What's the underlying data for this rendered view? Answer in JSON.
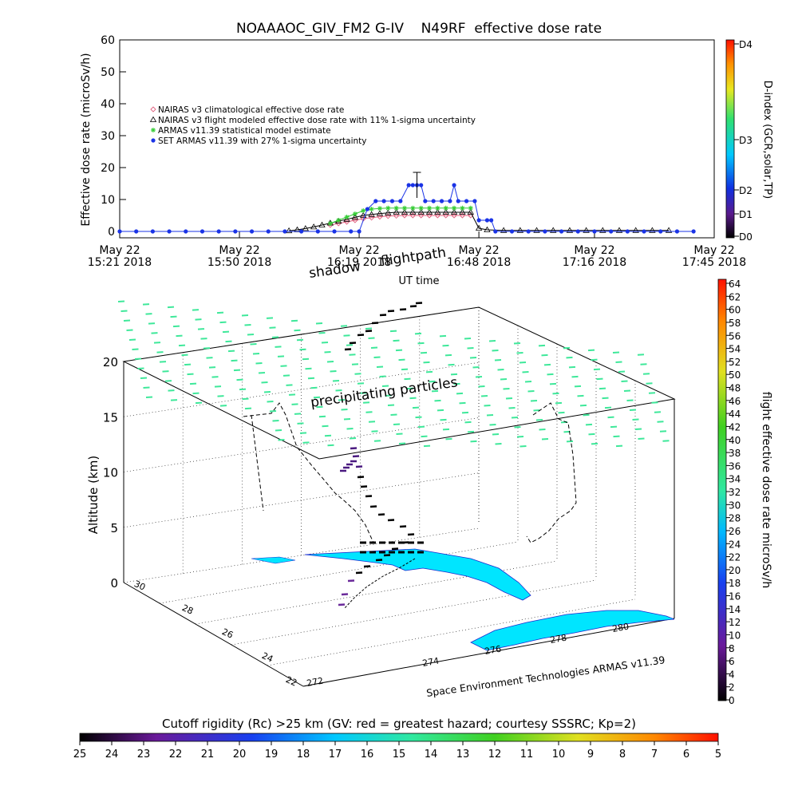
{
  "chart_data": [
    {
      "type": "line",
      "title": "NOAAAOC_GIV_FM2 G-IV    N49RF  effective dose rate",
      "xlabel": "UT time",
      "ylabel": "Effective dose rate (microSv/h)",
      "ylim": [
        0,
        60
      ],
      "yticks": [
        0,
        10,
        20,
        30,
        40,
        50,
        60
      ],
      "xlim": [
        "2018-05-22T15:21",
        "2018-05-22T17:45"
      ],
      "xticks": [
        {
          "t": "2018-05-22T15:21",
          "line1": "May 22",
          "line2": "15:21 2018"
        },
        {
          "t": "2018-05-22T15:50",
          "line1": "May 22",
          "line2": "15:50 2018"
        },
        {
          "t": "2018-05-22T16:19",
          "line1": "May 22",
          "line2": "16:19 2018"
        },
        {
          "t": "2018-05-22T16:48",
          "line1": "May 22",
          "line2": "16:48 2018"
        },
        {
          "t": "2018-05-22T17:16",
          "line1": "May 22",
          "line2": "17:16 2018"
        },
        {
          "t": "2018-05-22T17:45",
          "line1": "May 22",
          "line2": "17:45 2018"
        }
      ],
      "legend_placement": "upper-left",
      "right_axis": {
        "label": "D-index (GCR,solar,TP)",
        "ticks": [
          "D0",
          "D1",
          "D2",
          "D3",
          "D4"
        ]
      },
      "series": [
        {
          "name": "NAIRAS v3 climatological effective dose rate",
          "marker": "diamond",
          "color": "#e0607e",
          "points": [
            [
              "2018-05-22T16:12",
              2.0
            ],
            [
              "2018-05-22T16:14",
              2.5
            ],
            [
              "2018-05-22T16:16",
              3.0
            ],
            [
              "2018-05-22T16:18",
              3.5
            ],
            [
              "2018-05-22T16:20",
              4.0
            ],
            [
              "2018-05-22T16:22",
              4.3
            ],
            [
              "2018-05-22T16:24",
              4.6
            ],
            [
              "2018-05-22T16:26",
              4.8
            ],
            [
              "2018-05-22T16:28",
              4.9
            ],
            [
              "2018-05-22T16:30",
              5.0
            ],
            [
              "2018-05-22T16:32",
              5.0
            ],
            [
              "2018-05-22T16:34",
              5.0
            ],
            [
              "2018-05-22T16:36",
              5.0
            ],
            [
              "2018-05-22T16:38",
              5.0
            ],
            [
              "2018-05-22T16:40",
              5.0
            ],
            [
              "2018-05-22T16:42",
              5.0
            ],
            [
              "2018-05-22T16:44",
              5.0
            ],
            [
              "2018-05-22T16:46",
              5.0
            ]
          ]
        },
        {
          "name": "NAIRAS v3 flight modeled effective dose rate with 11% 1-sigma uncertainty",
          "marker": "triangle",
          "color": "#000000",
          "points": [
            [
              "2018-05-22T16:02",
              0.2
            ],
            [
              "2018-05-22T16:04",
              0.5
            ],
            [
              "2018-05-22T16:06",
              0.9
            ],
            [
              "2018-05-22T16:08",
              1.4
            ],
            [
              "2018-05-22T16:10",
              2.0
            ],
            [
              "2018-05-22T16:12",
              2.6
            ],
            [
              "2018-05-22T16:14",
              3.2
            ],
            [
              "2018-05-22T16:16",
              3.8
            ],
            [
              "2018-05-22T16:18",
              4.4
            ],
            [
              "2018-05-22T16:20",
              5.0
            ],
            [
              "2018-05-22T16:22",
              5.3
            ],
            [
              "2018-05-22T16:24",
              5.6
            ],
            [
              "2018-05-22T16:26",
              5.8
            ],
            [
              "2018-05-22T16:28",
              6.0
            ],
            [
              "2018-05-22T16:30",
              6.0
            ],
            [
              "2018-05-22T16:32",
              6.0
            ],
            [
              "2018-05-22T16:34",
              6.0
            ],
            [
              "2018-05-22T16:36",
              6.0
            ],
            [
              "2018-05-22T16:38",
              6.0
            ],
            [
              "2018-05-22T16:40",
              6.0
            ],
            [
              "2018-05-22T16:42",
              6.0
            ],
            [
              "2018-05-22T16:44",
              6.0
            ],
            [
              "2018-05-22T16:46",
              6.0
            ],
            [
              "2018-05-22T16:48",
              1.0
            ],
            [
              "2018-05-22T16:50",
              0.5
            ],
            [
              "2018-05-22T16:54",
              0.3
            ],
            [
              "2018-05-22T16:58",
              0.3
            ],
            [
              "2018-05-22T17:02",
              0.3
            ],
            [
              "2018-05-22T17:06",
              0.3
            ],
            [
              "2018-05-22T17:10",
              0.3
            ],
            [
              "2018-05-22T17:14",
              0.3
            ],
            [
              "2018-05-22T17:18",
              0.3
            ],
            [
              "2018-05-22T17:22",
              0.3
            ],
            [
              "2018-05-22T17:26",
              0.3
            ],
            [
              "2018-05-22T17:30",
              0.3
            ],
            [
              "2018-05-22T17:34",
              0.3
            ]
          ]
        },
        {
          "name": "ARMAS v11.39 statistical model estimate",
          "marker": "star",
          "color": "#33cc33",
          "points": [
            [
              "2018-05-22T16:12",
              2.5
            ],
            [
              "2018-05-22T16:14",
              3.5
            ],
            [
              "2018-05-22T16:16",
              4.5
            ],
            [
              "2018-05-22T16:18",
              5.5
            ],
            [
              "2018-05-22T16:20",
              6.5
            ],
            [
              "2018-05-22T16:22",
              7.0
            ],
            [
              "2018-05-22T16:24",
              7.2
            ],
            [
              "2018-05-22T16:26",
              7.3
            ],
            [
              "2018-05-22T16:28",
              7.3
            ],
            [
              "2018-05-22T16:30",
              7.3
            ],
            [
              "2018-05-22T16:32",
              7.3
            ],
            [
              "2018-05-22T16:34",
              7.3
            ],
            [
              "2018-05-22T16:36",
              7.3
            ],
            [
              "2018-05-22T16:38",
              7.3
            ],
            [
              "2018-05-22T16:40",
              7.3
            ],
            [
              "2018-05-22T16:42",
              7.3
            ],
            [
              "2018-05-22T16:44",
              7.3
            ],
            [
              "2018-05-22T16:46",
              7.3
            ]
          ]
        },
        {
          "name": "SET ARMAS v11.39 with 27% 1-sigma uncertainty",
          "marker": "circle",
          "color": "#1a33e6",
          "points": [
            [
              "2018-05-22T15:21",
              0.0
            ],
            [
              "2018-05-22T15:25",
              0.0
            ],
            [
              "2018-05-22T15:29",
              0.0
            ],
            [
              "2018-05-22T15:33",
              0.0
            ],
            [
              "2018-05-22T15:37",
              0.0
            ],
            [
              "2018-05-22T15:41",
              0.0
            ],
            [
              "2018-05-22T15:45",
              0.0
            ],
            [
              "2018-05-22T15:49",
              0.0
            ],
            [
              "2018-05-22T15:53",
              0.0
            ],
            [
              "2018-05-22T15:57",
              0.0
            ],
            [
              "2018-05-22T16:01",
              0.0
            ],
            [
              "2018-05-22T16:05",
              0.0
            ],
            [
              "2018-05-22T16:09",
              0.0
            ],
            [
              "2018-05-22T16:13",
              0.0
            ],
            [
              "2018-05-22T16:17",
              0.0
            ],
            [
              "2018-05-22T16:19",
              0.0
            ],
            [
              "2018-05-22T16:21",
              7.0
            ],
            [
              "2018-05-22T16:23",
              9.5
            ],
            [
              "2018-05-22T16:25",
              9.5
            ],
            [
              "2018-05-22T16:27",
              9.5
            ],
            [
              "2018-05-22T16:29",
              9.5
            ],
            [
              "2018-05-22T16:31",
              14.5
            ],
            [
              "2018-05-22T16:32",
              14.5
            ],
            [
              "2018-05-22T16:33",
              14.5
            ],
            [
              "2018-05-22T16:34",
              14.5
            ],
            [
              "2018-05-22T16:35",
              9.5
            ],
            [
              "2018-05-22T16:37",
              9.5
            ],
            [
              "2018-05-22T16:39",
              9.5
            ],
            [
              "2018-05-22T16:41",
              9.5
            ],
            [
              "2018-05-22T16:42",
              14.5
            ],
            [
              "2018-05-22T16:43",
              9.5
            ],
            [
              "2018-05-22T16:45",
              9.5
            ],
            [
              "2018-05-22T16:47",
              9.5
            ],
            [
              "2018-05-22T16:48",
              3.5
            ],
            [
              "2018-05-22T16:50",
              3.5
            ],
            [
              "2018-05-22T16:51",
              3.5
            ],
            [
              "2018-05-22T16:52",
              0.0
            ],
            [
              "2018-05-22T16:56",
              0.0
            ],
            [
              "2018-05-22T17:00",
              0.0
            ],
            [
              "2018-05-22T17:04",
              0.0
            ],
            [
              "2018-05-22T17:08",
              0.0
            ],
            [
              "2018-05-22T17:12",
              0.0
            ],
            [
              "2018-05-22T17:16",
              0.0
            ],
            [
              "2018-05-22T17:20",
              0.0
            ],
            [
              "2018-05-22T17:24",
              0.0
            ],
            [
              "2018-05-22T17:28",
              0.0
            ],
            [
              "2018-05-22T17:32",
              0.0
            ],
            [
              "2018-05-22T17:36",
              0.0
            ],
            [
              "2018-05-22T17:40",
              0.0
            ]
          ],
          "error_bars": [
            {
              "t": "2018-05-22T16:33",
              "low": 10.5,
              "high": 18.5
            }
          ]
        }
      ]
    },
    {
      "type": "3d-trajectory",
      "zlabel": "Altitude (km)",
      "zticks": [
        0,
        5,
        10,
        15,
        20
      ],
      "x_ticks": [
        "272",
        "274",
        "276",
        "278",
        "280"
      ],
      "y_ticks": [
        "22",
        "24",
        "26",
        "28",
        "30"
      ],
      "annotations": [
        "shadow",
        "flightpath",
        "precipitating particles"
      ],
      "credit": "Space Environment Technologies ARMAS v11.39",
      "colorbar": {
        "label": "flight effective dose rate microSv/h",
        "min": 0,
        "max": 64,
        "ticks": [
          0,
          2,
          4,
          6,
          8,
          10,
          12,
          14,
          16,
          18,
          20,
          22,
          24,
          26,
          28,
          30,
          32,
          34,
          36,
          38,
          40,
          42,
          44,
          46,
          48,
          50,
          52,
          54,
          56,
          58,
          60,
          62,
          64
        ]
      }
    },
    {
      "type": "colorbar",
      "title": "Cutoff rigidity (Rc) >25 km (GV: red = greatest hazard; courtesy SSSRC; Kp=2)",
      "ticks": [
        "25",
        "24",
        "23",
        "22",
        "21",
        "20",
        "19",
        "18",
        "17",
        "16",
        "15",
        "14",
        "13",
        "12",
        "11",
        "10",
        "9",
        "8",
        "7",
        "6",
        "5"
      ]
    }
  ],
  "colors": {
    "land": "#00e5ff",
    "particles": "#3ee89a",
    "path": "#000000"
  }
}
